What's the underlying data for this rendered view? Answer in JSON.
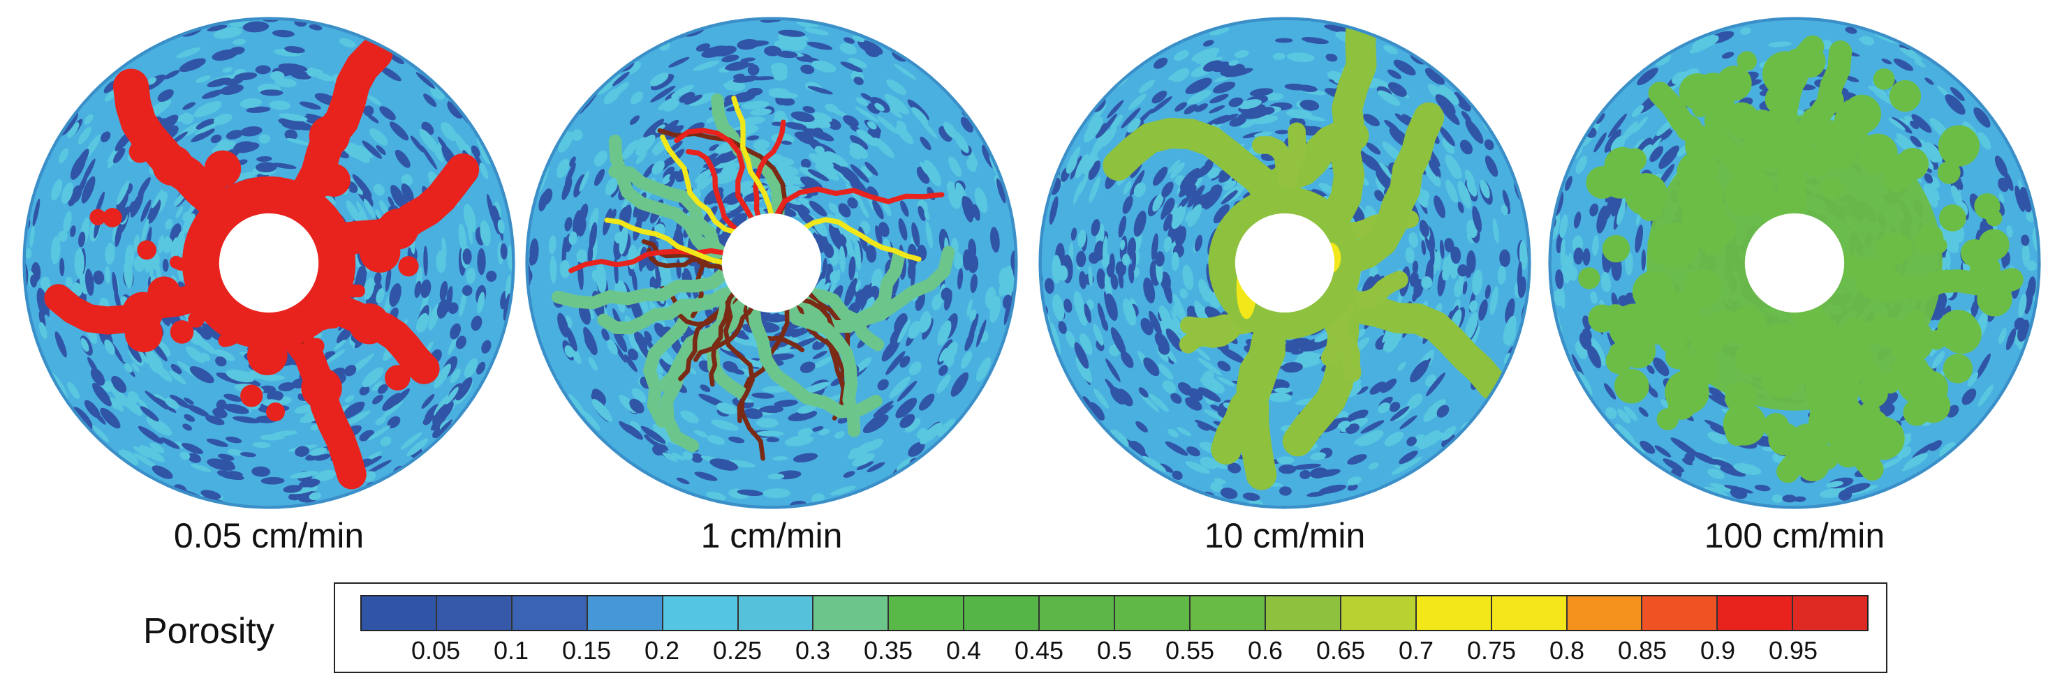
{
  "panels": [
    {
      "caption": "0.05 cm/min",
      "pattern": "dominant-wormhole",
      "core_fill": "#e8221d"
    },
    {
      "caption": "1 cm/min",
      "pattern": "ramified-wormholes",
      "core_fill": "#7a2a15"
    },
    {
      "caption": "10 cm/min",
      "pattern": "wide-wormholes",
      "core_fill": "#93c23f"
    },
    {
      "caption": "100 cm/min",
      "pattern": "uniform-dissolution",
      "core_fill": "#6cbd45"
    }
  ],
  "colorbar": {
    "label": "Porosity",
    "colors": [
      "#3155a6",
      "#3658a8",
      "#3a63b3",
      "#4597d7",
      "#54c5e3",
      "#56c1da",
      "#6cc68c",
      "#58b948",
      "#55b647",
      "#5db748",
      "#60b946",
      "#68bc45",
      "#8dc13e",
      "#b9d232",
      "#f2e718",
      "#f4e61a",
      "#f5921e",
      "#ef5324",
      "#e8221d",
      "#de2a23"
    ],
    "ticks": [
      "0.05",
      "0.1",
      "0.15",
      "0.2",
      "0.25",
      "0.3",
      "0.35",
      "0.4",
      "0.45",
      "0.5",
      "0.55",
      "0.6",
      "0.65",
      "0.7",
      "0.75",
      "0.8",
      "0.85",
      "0.9",
      "0.95"
    ]
  },
  "matrix_colors": {
    "low": "#3155a6",
    "mid": "#4ab0e0",
    "high": "#58c7df"
  }
}
